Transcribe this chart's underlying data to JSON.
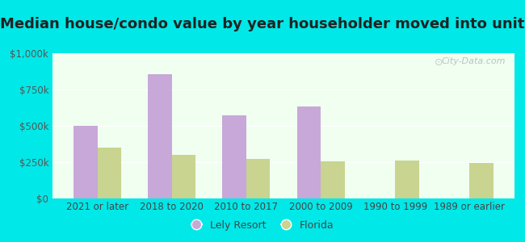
{
  "title": "Median house/condo value by year householder moved into unit",
  "categories": [
    "2021 or later",
    "2018 to 2020",
    "2010 to 2017",
    "2000 to 2009",
    "1990 to 1999",
    "1989 or earlier"
  ],
  "lely_values": [
    500000,
    855000,
    575000,
    635000,
    0,
    0
  ],
  "florida_values": [
    348000,
    298000,
    272000,
    255000,
    262000,
    242000
  ],
  "lely_color": "#c8a8d8",
  "florida_color": "#c8d490",
  "background_outer": "#00e8e8",
  "background_inner": "#f0fff0",
  "ylim": [
    0,
    1000000
  ],
  "yticks": [
    0,
    250000,
    500000,
    750000,
    1000000
  ],
  "ytick_labels": [
    "$0",
    "$250k",
    "$500k",
    "$750k",
    "$1,000k"
  ],
  "legend_lely": "Lely Resort",
  "legend_florida": "Florida",
  "watermark": "City-Data.com",
  "title_fontsize": 13,
  "axis_fontsize": 8.5,
  "legend_fontsize": 9,
  "bar_width": 0.32
}
